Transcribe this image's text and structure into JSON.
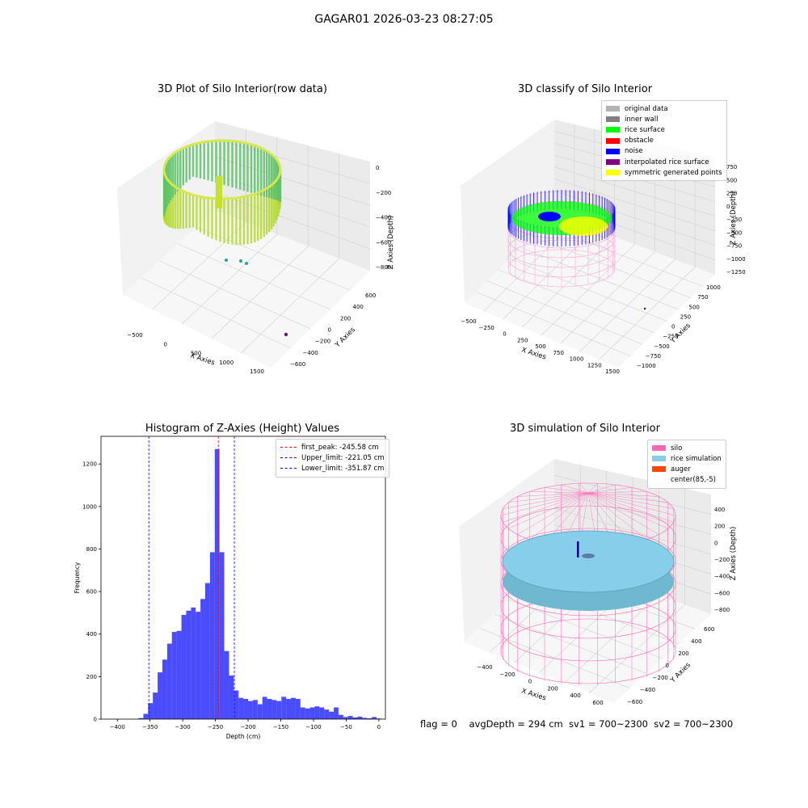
{
  "figure": {
    "suptitle": "GAGAR01 2026-03-23 08:27:05",
    "footer": "flag = 0    avgDepth = 294 cm  sv1 = 700~2300  sv2 = 700~2300"
  },
  "panels": {
    "p1": {
      "title": "3D Plot of Silo Interior(row data)",
      "xlabel": "X Axies",
      "ylabel": "Y Axies",
      "zlabel": "Z Axies (Depth)",
      "xticks": [
        "−500",
        "0",
        "500",
        "1000",
        "1500"
      ],
      "yticks": [
        "600",
        "400",
        "200",
        "0",
        "−200",
        "−400",
        "−600"
      ],
      "zticks": [
        "0",
        "−200",
        "−400",
        "−600",
        "−800"
      ]
    },
    "p2": {
      "title": "3D classify of Silo Interior",
      "xlabel": "X Axies",
      "ylabel": "Y Axies",
      "zlabel": "Z Axies (Depth)",
      "xticks": [
        "−500",
        "−250",
        "0",
        "250",
        "500",
        "750",
        "1000",
        "1250",
        "1500"
      ],
      "yticks": [
        "1000",
        "750",
        "500",
        "250",
        "0",
        "−250",
        "−500",
        "−750",
        "−1000"
      ],
      "zticks": [
        "750",
        "500",
        "250",
        "0",
        "−250",
        "−500",
        "−750",
        "−1000",
        "−1250"
      ],
      "legend": [
        {
          "label": "original data",
          "color": "#b3b3b3"
        },
        {
          "label": "inner wall",
          "color": "#808080"
        },
        {
          "label": "rice surface",
          "color": "#00ff00"
        },
        {
          "label": "obstacle",
          "color": "#ff0000"
        },
        {
          "label": "noise",
          "color": "#0000ff"
        },
        {
          "label": "interpolated rice surface",
          "color": "#800080"
        },
        {
          "label": "symmetric generated points",
          "color": "#ffff00"
        }
      ]
    },
    "p4": {
      "title": "3D simulation of Silo Interior",
      "xlabel": "X Axies",
      "ylabel": "Y Axies",
      "zlabel": "Z Axies (Depth)",
      "xticks": [
        "−400",
        "−200",
        "0",
        "200",
        "400",
        "600"
      ],
      "yticks": [
        "600",
        "400",
        "200",
        "0",
        "−200",
        "−400",
        "−600"
      ],
      "zticks": [
        "400",
        "200",
        "0",
        "−200",
        "−400",
        "−600",
        "−800"
      ],
      "legend": [
        {
          "label": "silo",
          "color": "#ff69b4"
        },
        {
          "label": "rice simulation",
          "color": "#87ceeb"
        },
        {
          "label": "auger",
          "color": "#ff4500"
        },
        {
          "label": "center(85,-5)",
          "color": "#ffffff"
        }
      ]
    }
  },
  "chart_data": {
    "type": "bar",
    "title": "Histogram of Z-Axies (Height) Values",
    "xlabel": "Depth (cm)",
    "ylabel": "Frequency",
    "xlim": [
      -425,
      10
    ],
    "ylim": [
      0,
      1330
    ],
    "xticks": [
      -400,
      -350,
      -300,
      -250,
      -200,
      -150,
      -100,
      -50,
      0
    ],
    "yticks": [
      0,
      200,
      400,
      600,
      800,
      1000,
      1200
    ],
    "bar_color": "#0000ff",
    "bins": [
      {
        "x0": -367.5,
        "x1": -360.2,
        "count": 5
      },
      {
        "x0": -360.2,
        "x1": -353.0,
        "count": 25
      },
      {
        "x0": -353.0,
        "x1": -345.7,
        "count": 75
      },
      {
        "x0": -345.7,
        "x1": -338.4,
        "count": 125
      },
      {
        "x0": -338.4,
        "x1": -331.1,
        "count": 220
      },
      {
        "x0": -331.1,
        "x1": -323.8,
        "count": 280
      },
      {
        "x0": -323.8,
        "x1": -316.6,
        "count": 355
      },
      {
        "x0": -316.6,
        "x1": -309.3,
        "count": 410
      },
      {
        "x0": -309.3,
        "x1": -302.0,
        "count": 415
      },
      {
        "x0": -302.0,
        "x1": -294.7,
        "count": 490
      },
      {
        "x0": -294.7,
        "x1": -287.4,
        "count": 510
      },
      {
        "x0": -287.4,
        "x1": -280.2,
        "count": 525
      },
      {
        "x0": -280.2,
        "x1": -272.9,
        "count": 505
      },
      {
        "x0": -272.9,
        "x1": -265.6,
        "count": 565
      },
      {
        "x0": -265.6,
        "x1": -258.3,
        "count": 640
      },
      {
        "x0": -258.3,
        "x1": -251.0,
        "count": 785
      },
      {
        "x0": -251.0,
        "x1": -243.8,
        "count": 1270
      },
      {
        "x0": -243.8,
        "x1": -236.5,
        "count": 785
      },
      {
        "x0": -236.5,
        "x1": -229.2,
        "count": 320
      },
      {
        "x0": -229.2,
        "x1": -221.9,
        "count": 205
      },
      {
        "x0": -221.9,
        "x1": -214.6,
        "count": 135
      },
      {
        "x0": -214.6,
        "x1": -207.4,
        "count": 100
      },
      {
        "x0": -207.4,
        "x1": -200.1,
        "count": 95
      },
      {
        "x0": -200.1,
        "x1": -192.8,
        "count": 85
      },
      {
        "x0": -192.8,
        "x1": -185.5,
        "count": 90
      },
      {
        "x0": -185.5,
        "x1": -178.2,
        "count": 70
      },
      {
        "x0": -178.2,
        "x1": -171.0,
        "count": 105
      },
      {
        "x0": -171.0,
        "x1": -163.7,
        "count": 95
      },
      {
        "x0": -163.7,
        "x1": -156.4,
        "count": 90
      },
      {
        "x0": -156.4,
        "x1": -149.1,
        "count": 85
      },
      {
        "x0": -149.1,
        "x1": -141.8,
        "count": 105
      },
      {
        "x0": -141.8,
        "x1": -134.6,
        "count": 95
      },
      {
        "x0": -134.6,
        "x1": -127.3,
        "count": 100
      },
      {
        "x0": -127.3,
        "x1": -120.0,
        "count": 95
      },
      {
        "x0": -120.0,
        "x1": -112.7,
        "count": 55
      },
      {
        "x0": -112.7,
        "x1": -105.4,
        "count": 50
      },
      {
        "x0": -105.4,
        "x1": -98.2,
        "count": 55
      },
      {
        "x0": -98.2,
        "x1": -90.9,
        "count": 60
      },
      {
        "x0": -90.9,
        "x1": -83.6,
        "count": 55
      },
      {
        "x0": -83.6,
        "x1": -76.3,
        "count": 45
      },
      {
        "x0": -76.3,
        "x1": -69.0,
        "count": 35
      },
      {
        "x0": -69.0,
        "x1": -61.8,
        "count": 55
      },
      {
        "x0": -61.8,
        "x1": -54.5,
        "count": 20
      },
      {
        "x0": -54.5,
        "x1": -47.2,
        "count": 10
      },
      {
        "x0": -47.2,
        "x1": -39.9,
        "count": 15
      },
      {
        "x0": -39.9,
        "x1": -32.6,
        "count": 8
      },
      {
        "x0": -32.6,
        "x1": -25.4,
        "count": 12
      },
      {
        "x0": -25.4,
        "x1": -18.1,
        "count": 6
      },
      {
        "x0": -18.1,
        "x1": -10.8,
        "count": 4
      },
      {
        "x0": -10.8,
        "x1": -3.5,
        "count": 10
      },
      {
        "x0": -3.5,
        "x1": 3.8,
        "count": 3
      }
    ],
    "vlines": [
      {
        "label": "first_peak: -245.58 cm",
        "x": -245.58,
        "color": "#ff0000"
      },
      {
        "label": "Upper_limit: -221.05 cm",
        "x": -221.05,
        "color": "#0000ff"
      },
      {
        "label": "Lower_limit: -351.87 cm",
        "x": -351.87,
        "color": "#0000ff"
      }
    ]
  }
}
